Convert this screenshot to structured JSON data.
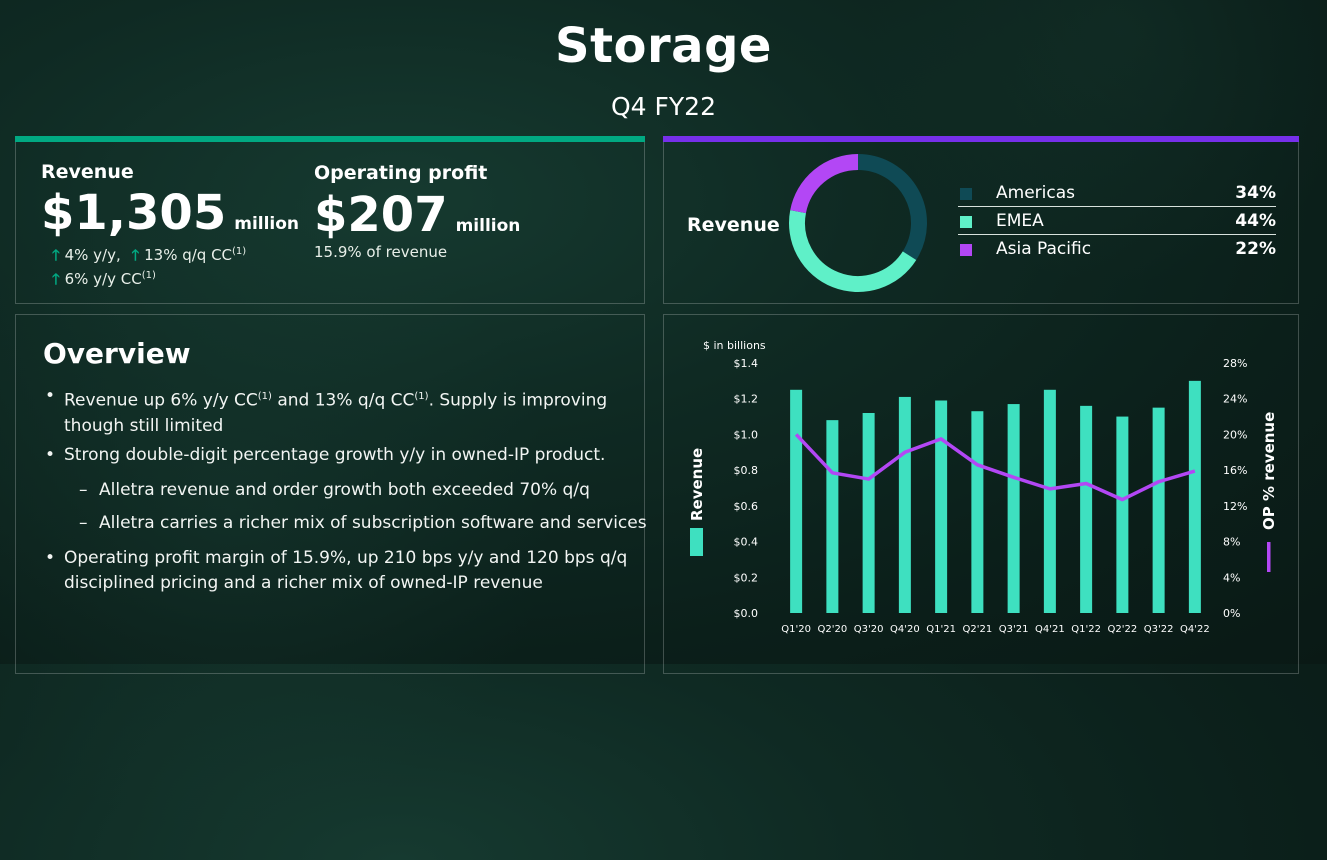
{
  "header": {
    "title": "Storage",
    "subtitle": "Q4 FY22"
  },
  "colors": {
    "green_bar": "#01a982",
    "purple_bar": "#7630ea",
    "americas": "#0f4a55",
    "emea": "#5ff0c8",
    "asia_pacific": "#b347f5",
    "bar": "#3ee0c0",
    "line": "#b347f5"
  },
  "kpi": {
    "revenue_label": "Revenue",
    "revenue_value": "$1,305",
    "revenue_unit": "million",
    "revenue_growth_1": "4% y/y,",
    "revenue_growth_2": "13% q/q CC",
    "revenue_growth_3": "6% y/y CC",
    "footnote": "(1)",
    "op_label": "Operating profit",
    "op_value": "$207",
    "op_unit": "million",
    "op_note": "15.9% of revenue"
  },
  "donut": {
    "label": "Revenue",
    "segments": [
      {
        "name": "Americas",
        "percent_label": "34%",
        "value": 34
      },
      {
        "name": "EMEA",
        "percent_label": "44%",
        "value": 44
      },
      {
        "name": "Asia Pacific",
        "percent_label": "22%",
        "value": 22
      }
    ]
  },
  "overview": {
    "title": "Overview",
    "b1_a": "Revenue up 6% y/y CC",
    "b1_b": " and 13% q/q CC",
    "b1_c": ".  Supply is improving",
    "b1_d": "though still limited",
    "b2": "Strong double-digit percentage growth y/y in owned-IP product.",
    "s1": "Alletra revenue and order growth both exceeded 70% q/q",
    "s2": "Alletra carries a richer mix of subscription software and services",
    "b3_a": "Operating profit margin of 15.9%, up 210 bps y/y and 120 bps q/q",
    "b3_b": "disciplined pricing and a richer mix of owned-IP revenue",
    "footnote": "(1)"
  },
  "chart_data": {
    "type": "bar",
    "title": "",
    "unit_label": "$ in billions",
    "categories": [
      "Q1'20",
      "Q2'20",
      "Q3'20",
      "Q4'20",
      "Q1'21",
      "Q2'21",
      "Q3'21",
      "Q4'21",
      "Q1'22",
      "Q2'22",
      "Q3'22",
      "Q4'22"
    ],
    "series": [
      {
        "name": "Revenue",
        "type": "bar",
        "axis": "left",
        "values": [
          1.25,
          1.08,
          1.12,
          1.21,
          1.19,
          1.13,
          1.17,
          1.25,
          1.16,
          1.1,
          1.15,
          1.3
        ]
      },
      {
        "name": "OP % revenue",
        "type": "line",
        "axis": "right",
        "values": [
          20.0,
          15.7,
          15.0,
          18.0,
          19.5,
          16.6,
          15.2,
          13.9,
          14.5,
          12.7,
          14.7,
          15.9
        ]
      }
    ],
    "ylabel": "Revenue",
    "y2label": "OP % revenue",
    "ylim": [
      0,
      1.4
    ],
    "y2lim": [
      0,
      28
    ],
    "yticks": [
      "$0.0",
      "$0.2",
      "$0.4",
      "$0.6",
      "$0.8",
      "$1.0",
      "$1.2",
      "$1.4"
    ],
    "y2ticks": [
      "0%",
      "4%",
      "8%",
      "12%",
      "16%",
      "20%",
      "24%",
      "28%"
    ],
    "grid": false
  }
}
